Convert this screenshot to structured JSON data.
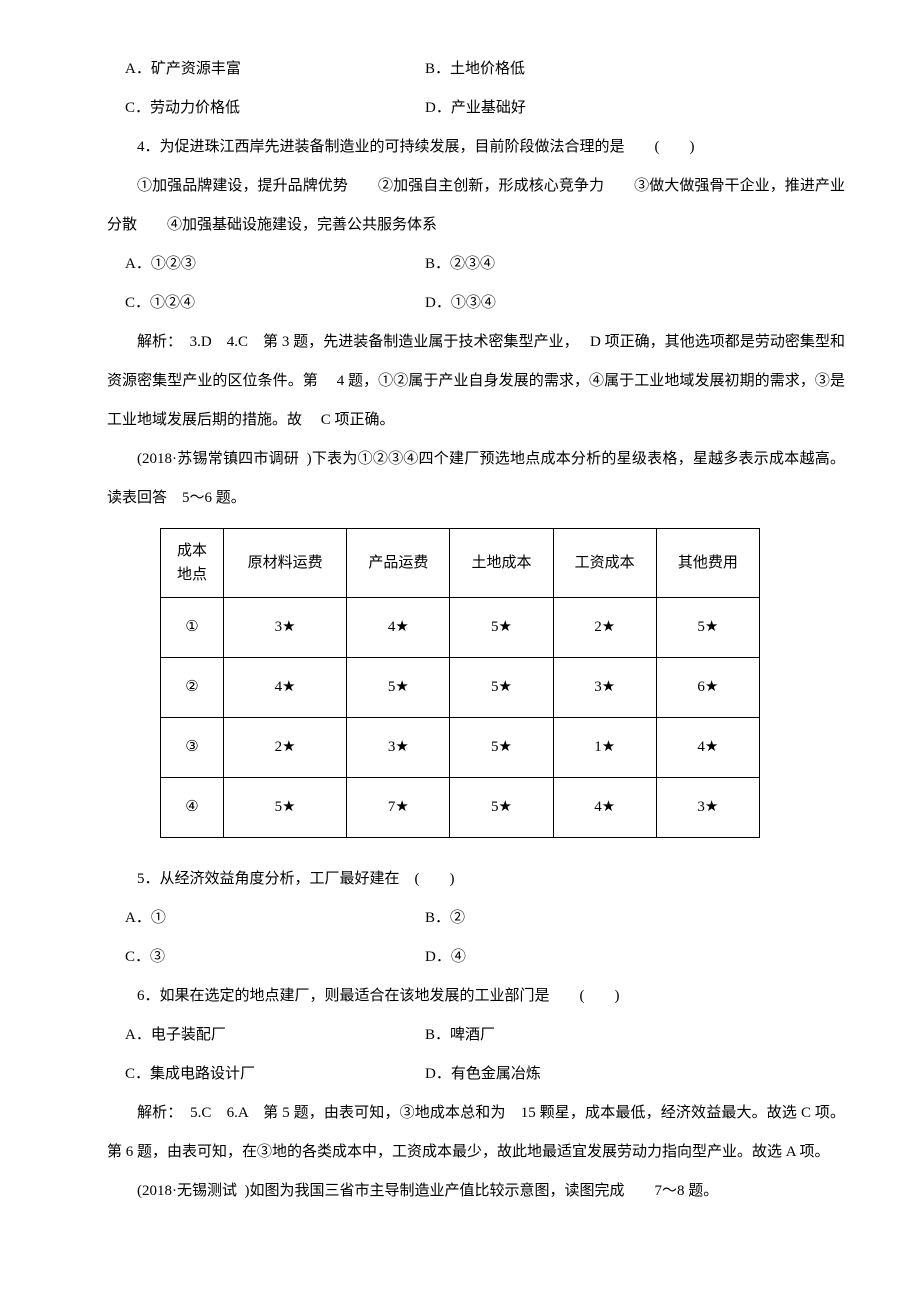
{
  "line1": {
    "a": "A．矿产资源丰富",
    "b": "B．土地价格低"
  },
  "line2": {
    "a": "C．劳动力价格低",
    "b": "D．产业基础好"
  },
  "q4": "4．为促进珠江西岸先进装备制造业的可持续发展，目前阶段做法合理的是　　(　　)",
  "q4_options": "①加强品牌建设，提升品牌优势　　②加强自主创新，形成核心竞争力　　③做大做强骨干企业，推进产业分散　　④加强基础设施建设，完善公共服务体系",
  "q4_a": {
    "a": "A．①②③",
    "b": "B．②③④"
  },
  "q4_b": {
    "a": "C．①②④",
    "b": "D．①③④"
  },
  "exp34": "解析：　3.D　4.C　第 3 题，先进装备制造业属于技术密集型产业，　 D 项正确，其他选项都是劳动密集型和资源密集型产业的区位条件。第　 4 题，①②属于产业自身发展的需求，④属于工业地域发展初期的需求，③是工业地域发展后期的措施。故　 C 项正确。",
  "intro56": "(2018·苏锡常镇四市调研 )下表为①②③④四个建厂预选地点成本分析的星级表格，星越多表示成本越高。读表回答　5～6 题。",
  "table": {
    "header": [
      "成本\n地点",
      "原材料运费",
      "产品运费",
      "土地成本",
      "工资成本",
      "其他费用"
    ],
    "rows": [
      [
        "①",
        "3★",
        "4★",
        "5★",
        "2★",
        "5★"
      ],
      [
        "②",
        "4★",
        "5★",
        "5★",
        "3★",
        "6★"
      ],
      [
        "③",
        "2★",
        "3★",
        "5★",
        "1★",
        "4★"
      ],
      [
        "④",
        "5★",
        "7★",
        "5★",
        "4★",
        "3★"
      ]
    ]
  },
  "q5": "5．从经济效益角度分析，工厂最好建在　(　　)",
  "q5_a": {
    "a": "A．①",
    "b": "B．②"
  },
  "q5_b": {
    "a": "C．③",
    "b": "D．④"
  },
  "q6": "6．如果在选定的地点建厂，则最适合在该地发展的工业部门是　　(　　)",
  "q6_a": {
    "a": "A．电子装配厂",
    "b": "B．啤酒厂"
  },
  "q6_b": {
    "a": "C．集成电路设计厂",
    "b": "D．有色金属冶炼"
  },
  "exp56": "解析：　5.C　6.A　第 5 题，由表可知，③地成本总和为　15 颗星，成本最低，经济效益最大。故选 C 项。第 6 题，由表可知，在③地的各类成本中，工资成本最少，故此地最适宜发展劳动力指向型产业。故选 A 项。",
  "intro78": "(2018·无锡测试 )如图为我国三省市主导制造业产值比较示意图，读图完成　　7～8 题。",
  "colors": {
    "background": "#ffffff",
    "text": "#000000",
    "border": "#000000"
  },
  "fonts": {
    "body_size": 15,
    "line_height": 2.6
  }
}
